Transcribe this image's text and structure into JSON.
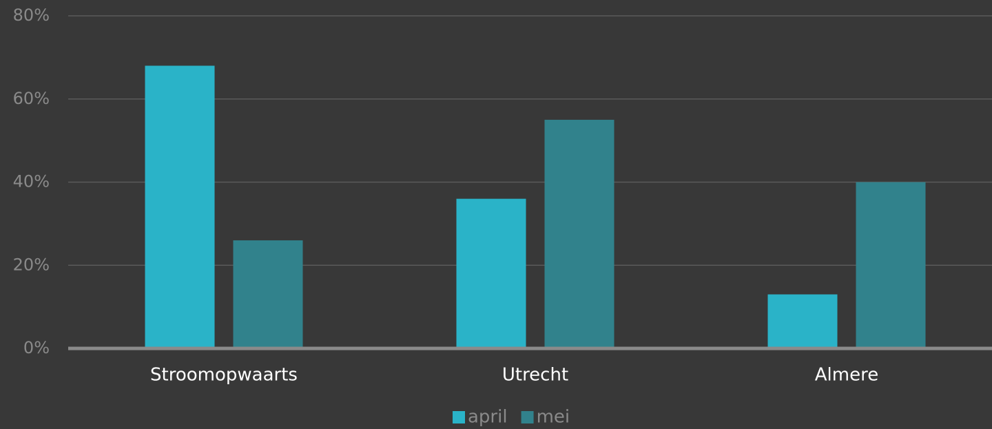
{
  "chart_data": {
    "type": "bar",
    "categories": [
      "Stroomopwaarts",
      "Utrecht",
      "Almere"
    ],
    "series": [
      {
        "name": "april",
        "color": "#2ab3c8",
        "values": [
          68,
          36,
          13
        ]
      },
      {
        "name": "mei",
        "color": "#31828c",
        "values": [
          26,
          55,
          40
        ]
      }
    ],
    "ylim": [
      0,
      80
    ],
    "yticks": [
      {
        "value": 0,
        "label": "0%"
      },
      {
        "value": 20,
        "label": "20%"
      },
      {
        "value": 40,
        "label": "40%"
      },
      {
        "value": 60,
        "label": "60%"
      },
      {
        "value": 80,
        "label": "80%"
      }
    ],
    "grid": true,
    "legend": "bottom"
  }
}
